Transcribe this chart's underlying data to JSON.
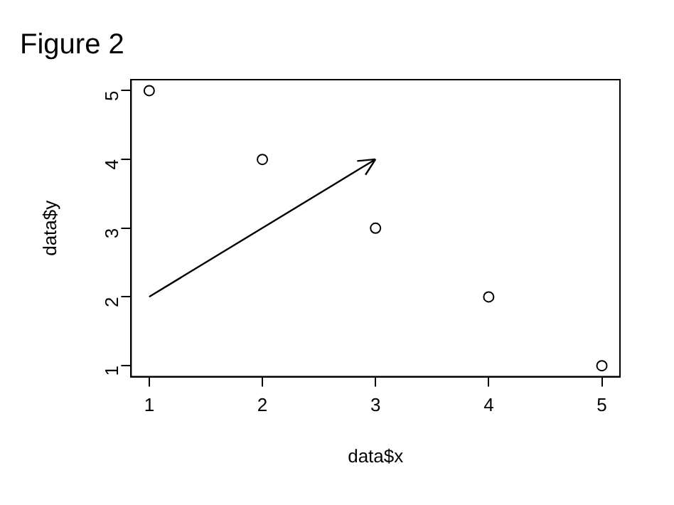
{
  "chart_data": {
    "type": "scatter",
    "title": "Figure 2",
    "xlabel": "data$x",
    "ylabel": "data$y",
    "x": [
      1,
      2,
      3,
      4,
      5
    ],
    "series": [
      {
        "color": "#000000",
        "values": [
          5,
          4,
          3,
          2,
          1
        ]
      }
    ],
    "xlim": [
      0.84,
      5.16
    ],
    "ylim": [
      0.84,
      5.16
    ],
    "xticks": [
      1,
      2,
      3,
      4,
      5
    ],
    "yticks": [
      1,
      2,
      3,
      4,
      5
    ],
    "grid": false,
    "legend": false,
    "marker": "circle"
  }
}
